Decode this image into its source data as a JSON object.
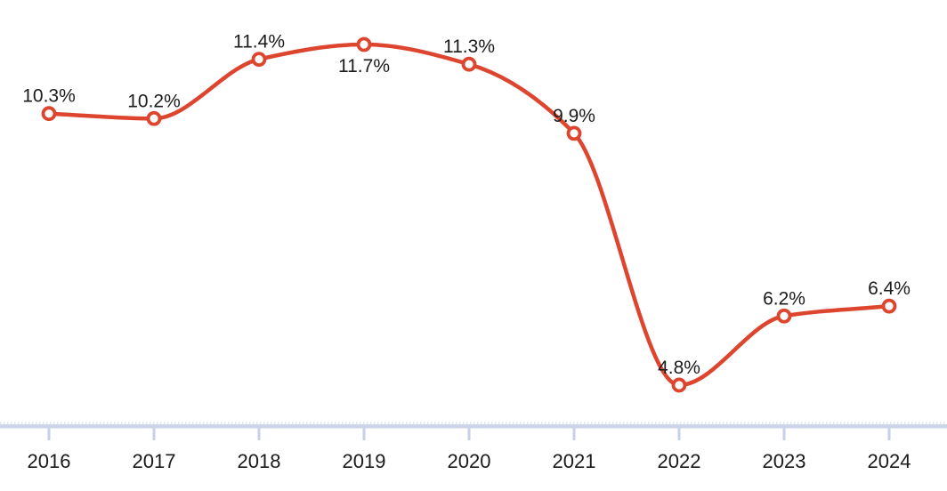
{
  "chart_data": {
    "type": "line",
    "title": "",
    "xlabel": "",
    "ylabel": "",
    "categories": [
      "2016",
      "2017",
      "2018",
      "2019",
      "2020",
      "2021",
      "2022",
      "2023",
      "2024"
    ],
    "series": [
      {
        "name": "rate-percent",
        "values": [
          10.3,
          10.2,
          11.4,
          11.7,
          11.3,
          9.9,
          4.8,
          6.2,
          6.4
        ],
        "point_labels": [
          "10.3%",
          "10.2%",
          "11.4%",
          "11.7%",
          "11.3%",
          "9.9%",
          "4.8%",
          "6.2%",
          "6.4%"
        ],
        "label_placement": [
          "above",
          "above",
          "above",
          "below",
          "above",
          "above",
          "above",
          "above",
          "above"
        ]
      }
    ],
    "ylim": [
      4.0,
      12.6
    ],
    "grid": false,
    "legend": "none",
    "curve": "smooth-monotone",
    "marker_shape": "open-circle",
    "colors": {
      "line": "#de452f",
      "marker_fill": "#ffffff",
      "marker_stroke": "#de452f",
      "point_label": "#1b1b1b",
      "axis_band": "#ccd4e8",
      "axis_dotted_edge": "#d8deef",
      "axis_tick": "#c7d0e9",
      "axis_label": "#1a1a1a",
      "background": "#ffffff"
    }
  }
}
